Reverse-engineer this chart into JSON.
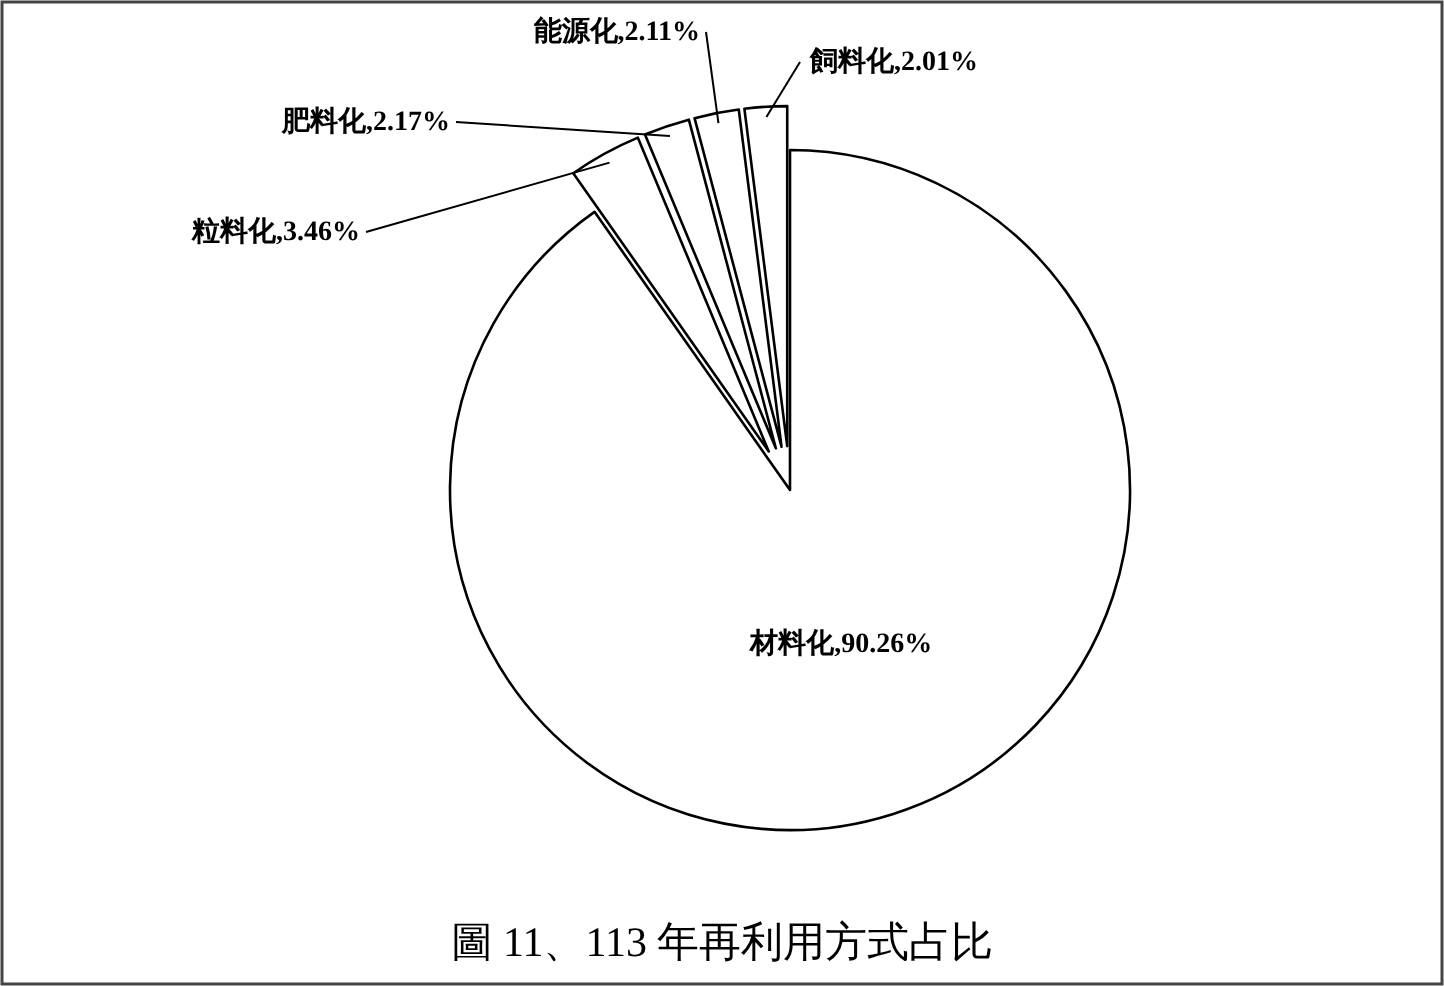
{
  "chart_data": {
    "type": "pie",
    "title": "圖 11、113 年再利用方式占比",
    "categories": [
      "材料化",
      "粒料化",
      "肥料化",
      "能源化",
      "飼料化"
    ],
    "values": [
      90.26,
      3.46,
      2.17,
      2.11,
      2.01
    ],
    "colors": [
      "#ffffff",
      "#ffffff",
      "#ffffff",
      "#ffffff",
      "#ffffff"
    ],
    "value_labels": [
      ",90.26%",
      ",3.46%",
      ",2.17%",
      ",2.11%",
      ",2.01%"
    ]
  }
}
